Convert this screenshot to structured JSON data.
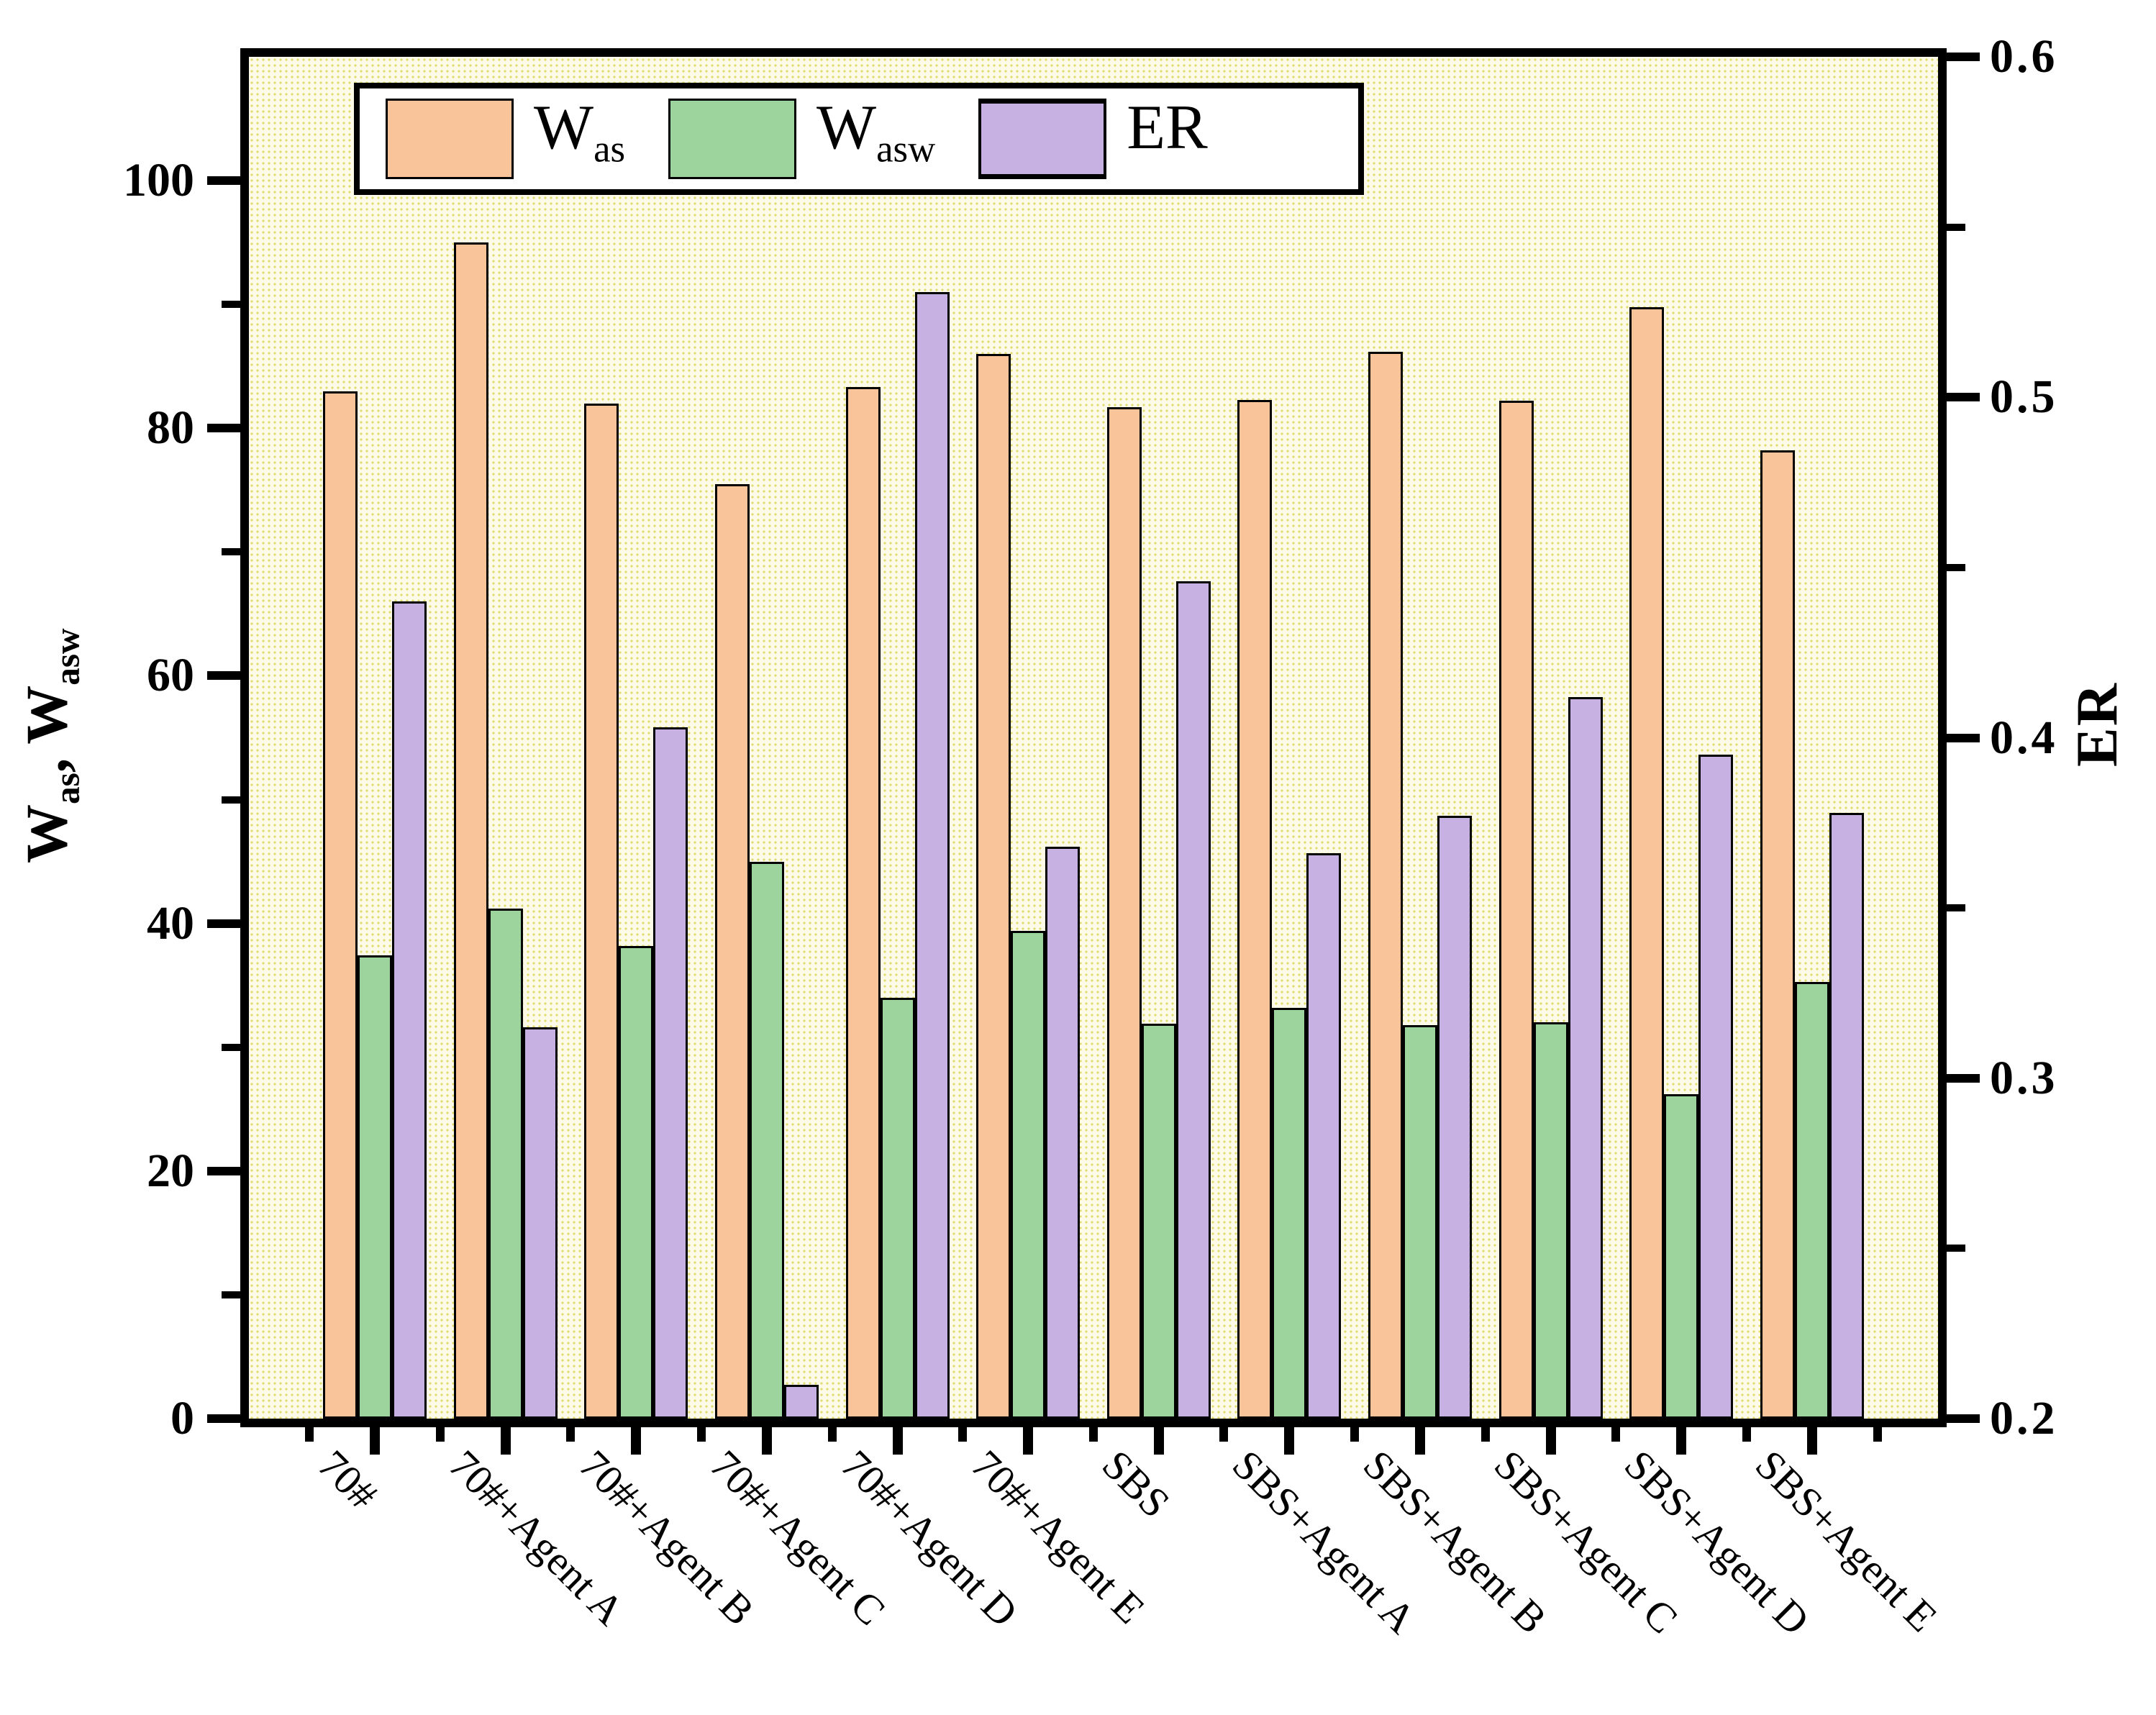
{
  "chart_data": {
    "type": "bar",
    "title": "",
    "categories": [
      "70#",
      "70#+Agent A",
      "70#+Agent B",
      "70#+Agent C",
      "70#+Agent D",
      "70#+Agent E",
      "SBS",
      "SBS+Agent A",
      "SBS+Agent B",
      "SBS+Agent C",
      "SBS+Agent D",
      "SBS+Agent E"
    ],
    "series": [
      {
        "name": "Was",
        "axis": "left",
        "color": "#FAC49A",
        "values": [
          83.0,
          95.0,
          82.0,
          75.5,
          83.3,
          86.0,
          81.7,
          82.3,
          86.2,
          82.2,
          89.8,
          78.2
        ]
      },
      {
        "name": "Wasw",
        "axis": "left",
        "color": "#9DD39C",
        "values": [
          37.4,
          41.2,
          38.2,
          45.0,
          34.0,
          39.4,
          31.9,
          33.2,
          31.8,
          32.0,
          26.2,
          35.3
        ]
      },
      {
        "name": "ER",
        "axis": "right",
        "color": "#C7B1E2",
        "values": [
          0.44,
          0.315,
          0.403,
          0.21,
          0.531,
          0.368,
          0.446,
          0.366,
          0.377,
          0.412,
          0.395,
          0.378
        ]
      }
    ],
    "y_left_axis": {
      "label": "Was, Wasw",
      "min": 0,
      "max": 110,
      "major_tick_step": 20,
      "minor_tick_step": 10,
      "tick_labels": [
        "0",
        "20",
        "40",
        "60",
        "80",
        "100"
      ]
    },
    "y_right_axis": {
      "label": "ER",
      "min": 0.2,
      "max": 0.6,
      "major_tick_step": 0.1,
      "minor_tick_step": 0.05,
      "tick_labels": [
        "0.2",
        "0.3",
        "0.4",
        "0.5",
        "0.6"
      ]
    },
    "legend_position": "top-left",
    "grid": false,
    "plot_background": "#FDFBE8",
    "dot_pattern_color": "#E0D96E",
    "frame_color": "#000000"
  },
  "axes": {
    "y_left_t1": "W",
    "y_left_s1": "as",
    "y_left_t2": ", W",
    "y_left_s2": "asw",
    "y_right_title": "ER"
  },
  "legend": {
    "entries": [
      {
        "main": "W",
        "sub": "as",
        "color": "#FAC49A"
      },
      {
        "main": "W",
        "sub": "asw",
        "color": "#9DD39C"
      },
      {
        "main": "ER",
        "sub": "",
        "color": "#C7B1E2"
      }
    ]
  }
}
